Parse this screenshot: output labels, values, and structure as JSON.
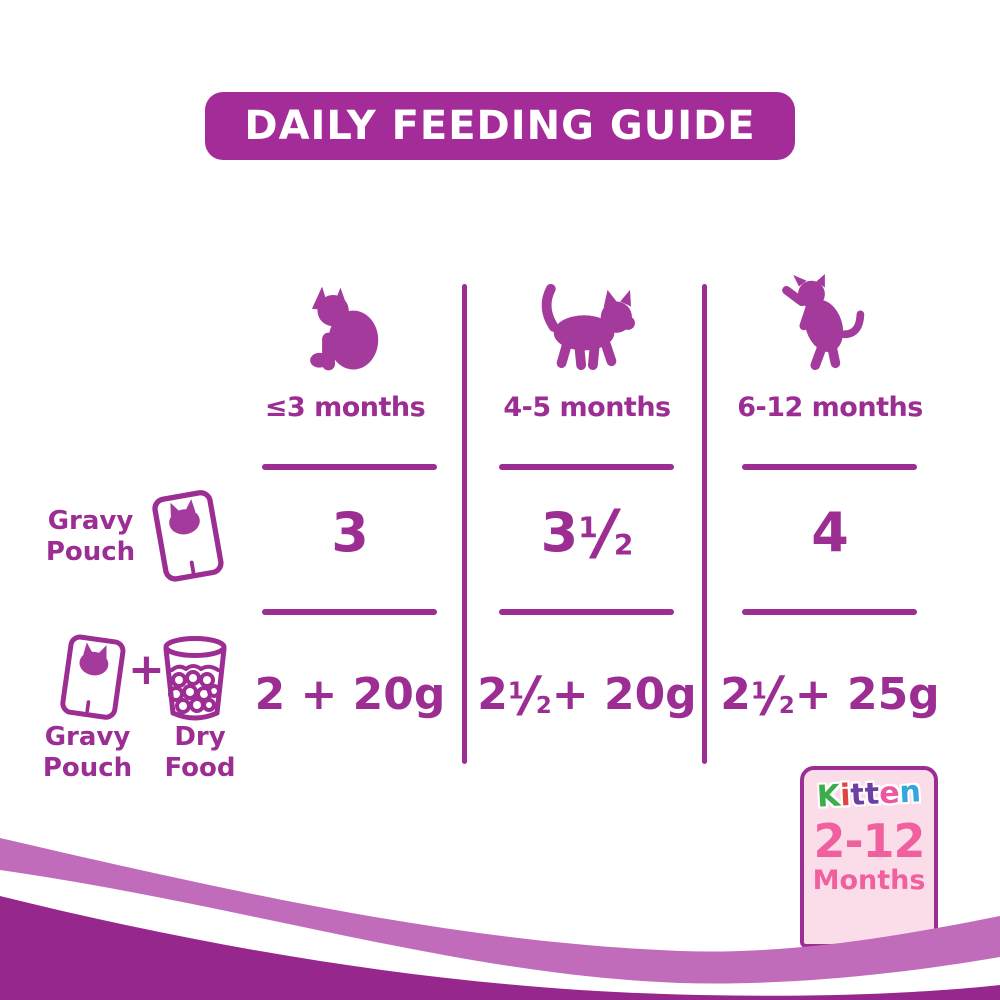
{
  "colors": {
    "purple": "#9b2d93",
    "header_bg": "#a32c98",
    "silhouette": "#a43a9c",
    "band_light": "#c06cbb",
    "band_dark": "#96278d",
    "badge_bg": "#fbdce9",
    "badge_border": "#9b2d93",
    "pink": "#f0609e"
  },
  "header": {
    "title": "DAILY FEEDING GUIDE"
  },
  "columns": [
    {
      "age_label": "≤3 months",
      "icon": "kitten-sitting-icon"
    },
    {
      "age_label": "4-5 months",
      "icon": "kitten-walking-icon"
    },
    {
      "age_label": "6-12 months",
      "icon": "kitten-standing-icon"
    }
  ],
  "rows": [
    {
      "name": "Gravy Pouch",
      "label_lines": [
        "Gravy",
        "Pouch"
      ],
      "icons": [
        "gravy-pouch-icon"
      ]
    },
    {
      "name": "Gravy Pouch + Dry Food",
      "pouch_label_lines": [
        "Gravy",
        "Pouch"
      ],
      "plus": "+",
      "dry_label_lines": [
        "Dry",
        "Food"
      ],
      "icons": [
        "gravy-pouch-icon",
        "plus-icon",
        "dry-food-cup-icon"
      ]
    }
  ],
  "grid": {
    "cells": [
      [
        [
          {
            "t": "3"
          }
        ],
        [
          {
            "t": "3 "
          },
          {
            "f": [
              "1",
              "2"
            ]
          }
        ],
        [
          {
            "t": "4"
          }
        ]
      ],
      [
        [
          {
            "t": "2 + 20g"
          }
        ],
        [
          {
            "t": "2 "
          },
          {
            "f": [
              "1",
              "2"
            ]
          },
          {
            "t": " + 20g"
          }
        ],
        [
          {
            "t": "2 "
          },
          {
            "f": [
              "1",
              "2"
            ]
          },
          {
            "t": " + 25g"
          }
        ]
      ]
    ],
    "cells_plain": [
      [
        "3",
        "3 1/2",
        "4"
      ],
      [
        "2 + 20g",
        "2 1/2 + 20g",
        "2 1/2 + 25g"
      ]
    ]
  },
  "badge": {
    "kitten": {
      "text": "Kitten",
      "letter_colors": [
        "#3bad4a",
        "#e04444",
        "#6b3fa4",
        "#6b3fa4",
        "#ea57a3",
        "#33a6df"
      ]
    },
    "age_range": "2-12",
    "unit": "Months"
  }
}
